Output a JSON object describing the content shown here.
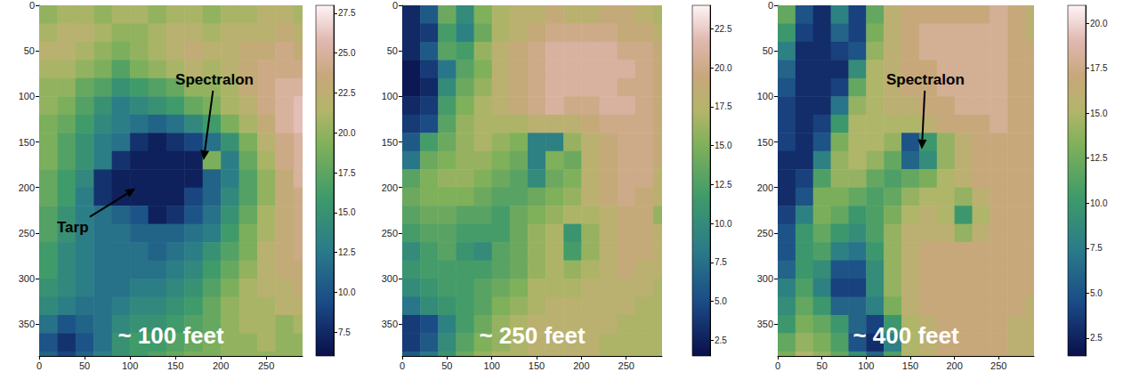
{
  "chart_data": [
    {
      "type": "heatmap",
      "label": "~ 100 feet",
      "x": [
        10,
        30,
        50,
        70,
        90,
        110,
        130,
        150,
        170,
        190,
        210,
        230,
        250,
        270,
        290
      ],
      "y": [
        10,
        30,
        50,
        70,
        90,
        110,
        130,
        150,
        170,
        190,
        210,
        230,
        250,
        270,
        290,
        310,
        330,
        350,
        370,
        390
      ],
      "xlim": [
        0,
        290
      ],
      "xticks": [
        0,
        50,
        100,
        150,
        200,
        250
      ],
      "ylim": [
        385,
        0
      ],
      "yticks": [
        0,
        50,
        100,
        150,
        200,
        250,
        300,
        350
      ],
      "cells": [
        [
          20,
          21,
          21,
          20,
          21,
          21,
          20,
          21,
          21,
          20,
          21,
          21,
          22,
          22,
          21
        ],
        [
          21,
          22,
          22,
          21,
          20,
          20,
          21,
          22,
          22,
          21,
          22,
          22,
          22,
          23,
          22
        ],
        [
          22,
          22,
          21,
          20,
          19,
          20,
          21,
          22,
          23,
          22,
          22,
          23,
          23,
          24,
          23
        ],
        [
          21,
          21,
          20,
          19,
          17,
          19,
          20,
          21,
          22,
          21,
          22,
          23,
          24,
          24,
          24
        ],
        [
          20,
          20,
          18,
          17,
          15,
          16,
          17,
          18,
          20,
          20,
          21,
          23,
          24,
          25,
          25
        ],
        [
          20,
          19,
          17,
          15,
          13,
          14,
          15,
          16,
          18,
          19,
          21,
          22,
          24,
          25,
          26
        ],
        [
          19,
          18,
          16,
          14,
          13,
          12,
          11,
          12,
          14,
          16,
          19,
          21,
          23,
          25,
          26
        ],
        [
          19,
          17,
          15,
          13,
          12,
          8,
          7,
          8,
          9,
          12,
          15,
          19,
          22,
          24,
          25
        ],
        [
          19,
          17,
          15,
          13,
          8,
          7,
          7,
          7,
          7,
          19,
          13,
          18,
          21,
          24,
          25
        ],
        [
          18,
          16,
          14,
          8,
          7,
          7,
          7,
          7,
          7,
          11,
          13,
          17,
          20,
          23,
          25
        ],
        [
          18,
          16,
          13,
          8,
          7,
          7,
          7,
          7,
          9,
          11,
          14,
          17,
          20,
          23,
          24
        ],
        [
          17,
          15,
          13,
          12,
          11,
          10,
          7,
          8,
          10,
          12,
          15,
          18,
          21,
          23,
          24
        ],
        [
          17,
          15,
          13,
          12,
          12,
          11,
          11,
          11,
          12,
          13,
          16,
          19,
          21,
          23,
          24
        ],
        [
          16,
          14,
          13,
          12,
          12,
          12,
          11,
          12,
          13,
          15,
          17,
          19,
          22,
          23,
          24
        ],
        [
          16,
          14,
          13,
          12,
          12,
          12,
          12,
          13,
          14,
          16,
          18,
          20,
          22,
          23,
          23
        ],
        [
          15,
          14,
          13,
          12,
          12,
          13,
          13,
          14,
          15,
          17,
          19,
          21,
          22,
          22,
          23
        ],
        [
          14,
          13,
          12,
          12,
          13,
          14,
          14,
          15,
          16,
          18,
          20,
          21,
          21,
          22,
          22
        ],
        [
          12,
          10,
          11,
          12,
          14,
          15,
          15,
          16,
          17,
          18,
          20,
          21,
          21,
          20,
          21
        ],
        [
          10,
          8,
          10,
          12,
          15,
          16,
          16,
          17,
          18,
          19,
          20,
          20,
          21,
          20,
          20
        ],
        [
          11,
          9,
          11,
          13,
          15,
          16,
          17,
          18,
          19,
          19,
          20,
          20,
          20,
          20,
          20
        ]
      ],
      "colorbar": {
        "range": [
          6,
          28
        ],
        "ticks": [
          7.5,
          {
            "value": 10,
            "label": "10.0"
          },
          12.5,
          {
            "value": 15,
            "label": "15.0"
          },
          17.5,
          {
            "value": 20,
            "label": "20.0"
          },
          22.5,
          {
            "value": 25,
            "label": "25.0"
          },
          27.5
        ]
      },
      "annotations": [
        {
          "text": "Spectralon",
          "x": 181,
          "y": 170,
          "text_x": 193,
          "text_y": 82
        },
        {
          "text": "Tarp",
          "x": 106,
          "y": 201,
          "text_x": 37,
          "text_y": 244
        }
      ]
    },
    {
      "type": "heatmap",
      "label": "~ 250 feet",
      "x": [
        10,
        30,
        50,
        70,
        90,
        110,
        130,
        150,
        170,
        190,
        210,
        230,
        250,
        270,
        290
      ],
      "y": [
        10,
        30,
        50,
        70,
        90,
        110,
        130,
        150,
        170,
        190,
        210,
        230,
        250,
        270,
        290,
        310,
        330,
        350,
        370,
        390
      ],
      "xlim": [
        0,
        290
      ],
      "xticks": [
        0,
        50,
        100,
        150,
        200,
        250
      ],
      "ylim": [
        385,
        0
      ],
      "yticks": [
        0,
        50,
        100,
        150,
        200,
        250,
        300,
        350
      ],
      "cells": [
        [
          3,
          6,
          14,
          10,
          15,
          17,
          18,
          18,
          19,
          18,
          18,
          19,
          19,
          18,
          17
        ],
        [
          3,
          4,
          12,
          9,
          14,
          17,
          18,
          19,
          20,
          20,
          20,
          20,
          19,
          19,
          18
        ],
        [
          3,
          6,
          13,
          12,
          16,
          18,
          19,
          20,
          21,
          21,
          21,
          21,
          20,
          20,
          19
        ],
        [
          2,
          4,
          8,
          13,
          15,
          18,
          19,
          20,
          21,
          21,
          21,
          21,
          21,
          20,
          19
        ],
        [
          2,
          3,
          10,
          14,
          16,
          18,
          19,
          20,
          21,
          21,
          21,
          21,
          20,
          20,
          19
        ],
        [
          3,
          4,
          12,
          15,
          17,
          18,
          19,
          20,
          21,
          20,
          20,
          21,
          21,
          20,
          19
        ],
        [
          4,
          5,
          13,
          16,
          17,
          17,
          17,
          18,
          18,
          18,
          19,
          20,
          20,
          20,
          19
        ],
        [
          6,
          12,
          14,
          16,
          17,
          16,
          15,
          9,
          9,
          16,
          18,
          19,
          20,
          20,
          19
        ],
        [
          8,
          14,
          15,
          16,
          16,
          15,
          14,
          9,
          15,
          14,
          18,
          19,
          20,
          20,
          19
        ],
        [
          13,
          15,
          16,
          16,
          15,
          14,
          13,
          10,
          14,
          15,
          18,
          19,
          20,
          20,
          18
        ],
        [
          14,
          15,
          15,
          15,
          14,
          13,
          13,
          14,
          15,
          16,
          18,
          19,
          20,
          19,
          18
        ],
        [
          13,
          14,
          14,
          13,
          13,
          12,
          14,
          15,
          16,
          17,
          17,
          18,
          19,
          19,
          16
        ],
        [
          12,
          13,
          13,
          12,
          12,
          12,
          14,
          16,
          17,
          11,
          16,
          18,
          19,
          19,
          18
        ],
        [
          10,
          12,
          13,
          11,
          10,
          13,
          14,
          16,
          17,
          12,
          16,
          18,
          19,
          19,
          18
        ],
        [
          11,
          12,
          12,
          12,
          12,
          13,
          14,
          16,
          17,
          16,
          17,
          18,
          19,
          18,
          18
        ],
        [
          10,
          11,
          12,
          12,
          13,
          14,
          15,
          17,
          17,
          17,
          18,
          18,
          18,
          18,
          17
        ],
        [
          8,
          10,
          11,
          12,
          13,
          15,
          16,
          17,
          18,
          18,
          18,
          18,
          18,
          17,
          17
        ],
        [
          4,
          5,
          9,
          12,
          14,
          16,
          17,
          18,
          18,
          18,
          18,
          18,
          17,
          17,
          17
        ],
        [
          4,
          6,
          10,
          13,
          15,
          16,
          17,
          18,
          18,
          18,
          18,
          17,
          17,
          17,
          17
        ],
        [
          6,
          8,
          11,
          14,
          16,
          17,
          17,
          18,
          18,
          18,
          18,
          17,
          17,
          17,
          17
        ]
      ],
      "colorbar": {
        "range": [
          1.5,
          24
        ],
        "ticks": [
          2.5,
          {
            "value": 5,
            "label": "5.0"
          },
          7.5,
          {
            "value": 10,
            "label": "10.0"
          },
          12.5,
          {
            "value": 15,
            "label": "15.0"
          },
          17.5,
          {
            "value": 20,
            "label": "20.0"
          },
          22.5
        ]
      },
      "annotations": []
    },
    {
      "type": "heatmap",
      "label": "~ 400 feet",
      "x": [
        10,
        30,
        50,
        70,
        90,
        110,
        130,
        150,
        170,
        190,
        210,
        230,
        250,
        270,
        290
      ],
      "y": [
        10,
        30,
        50,
        70,
        90,
        110,
        130,
        150,
        170,
        190,
        210,
        230,
        250,
        270,
        290,
        310,
        330,
        350,
        370,
        390
      ],
      "xlim": [
        0,
        290
      ],
      "xticks": [
        0,
        50,
        100,
        150,
        200,
        250
      ],
      "ylim": [
        385,
        0
      ],
      "yticks": [
        0,
        50,
        100,
        150,
        200,
        250,
        300,
        350
      ],
      "cells": [
        [
          12,
          5,
          3,
          8,
          4,
          12,
          16,
          17,
          17,
          17,
          17,
          17,
          18,
          17,
          16
        ],
        [
          10,
          4,
          3,
          6,
          4,
          13,
          16,
          17,
          18,
          18,
          18,
          18,
          18,
          17,
          16
        ],
        [
          8,
          3,
          3,
          4,
          5,
          14,
          16,
          17,
          18,
          18,
          18,
          18,
          18,
          17,
          17
        ],
        [
          6,
          3,
          3,
          3,
          9,
          15,
          16,
          17,
          17,
          18,
          18,
          18,
          18,
          17,
          17
        ],
        [
          5,
          3,
          3,
          4,
          12,
          15,
          16,
          17,
          17,
          18,
          18,
          18,
          18,
          17,
          17
        ],
        [
          4,
          3,
          3,
          7,
          14,
          15,
          16,
          16,
          17,
          17,
          18,
          18,
          18,
          17,
          17
        ],
        [
          4,
          3,
          4,
          10,
          15,
          15,
          15,
          15,
          16,
          17,
          17,
          17,
          18,
          17,
          17
        ],
        [
          4,
          3,
          5,
          13,
          15,
          15,
          14,
          5,
          10,
          14,
          16,
          17,
          17,
          17,
          17
        ],
        [
          3,
          3,
          8,
          14,
          15,
          14,
          12,
          6,
          9,
          14,
          16,
          17,
          17,
          17,
          17
        ],
        [
          3,
          4,
          11,
          14,
          14,
          12,
          11,
          12,
          13,
          15,
          16,
          17,
          17,
          17,
          17
        ],
        [
          3,
          5,
          13,
          13,
          12,
          11,
          12,
          14,
          15,
          15,
          14,
          16,
          17,
          17,
          17
        ],
        [
          4,
          8,
          13,
          12,
          10,
          11,
          13,
          15,
          16,
          15,
          10,
          15,
          17,
          17,
          17
        ],
        [
          5,
          10,
          12,
          10,
          9,
          11,
          14,
          16,
          16,
          16,
          14,
          16,
          17,
          17,
          17
        ],
        [
          5,
          10,
          11,
          8,
          7,
          10,
          14,
          16,
          17,
          17,
          17,
          17,
          17,
          17,
          17
        ],
        [
          6,
          10,
          9,
          5,
          5,
          9,
          14,
          16,
          17,
          17,
          17,
          17,
          17,
          17,
          17
        ],
        [
          8,
          11,
          8,
          4,
          4,
          9,
          14,
          16,
          17,
          17,
          17,
          17,
          17,
          17,
          17
        ],
        [
          9,
          12,
          10,
          6,
          6,
          8,
          13,
          16,
          17,
          17,
          17,
          17,
          17,
          17,
          16
        ],
        [
          10,
          13,
          12,
          10,
          6,
          4,
          10,
          15,
          16,
          17,
          17,
          17,
          17,
          16,
          16
        ],
        [
          12,
          14,
          13,
          11,
          5,
          3,
          8,
          15,
          16,
          17,
          17,
          17,
          17,
          16,
          16
        ],
        [
          13,
          15,
          14,
          12,
          9,
          6,
          11,
          15,
          16,
          17,
          17,
          17,
          17,
          16,
          16
        ]
      ],
      "colorbar": {
        "range": [
          1.5,
          21
        ],
        "ticks": [
          2.5,
          {
            "value": 5,
            "label": "5.0"
          },
          7.5,
          {
            "value": 10,
            "label": "10.0"
          },
          12.5,
          {
            "value": 15,
            "label": "15.0"
          },
          17.5,
          {
            "value": 20,
            "label": "20.0"
          }
        ]
      },
      "annotations": [
        {
          "text": "Spectralon",
          "x": 163,
          "y": 158,
          "text_x": 167,
          "text_y": 82
        }
      ]
    }
  ]
}
